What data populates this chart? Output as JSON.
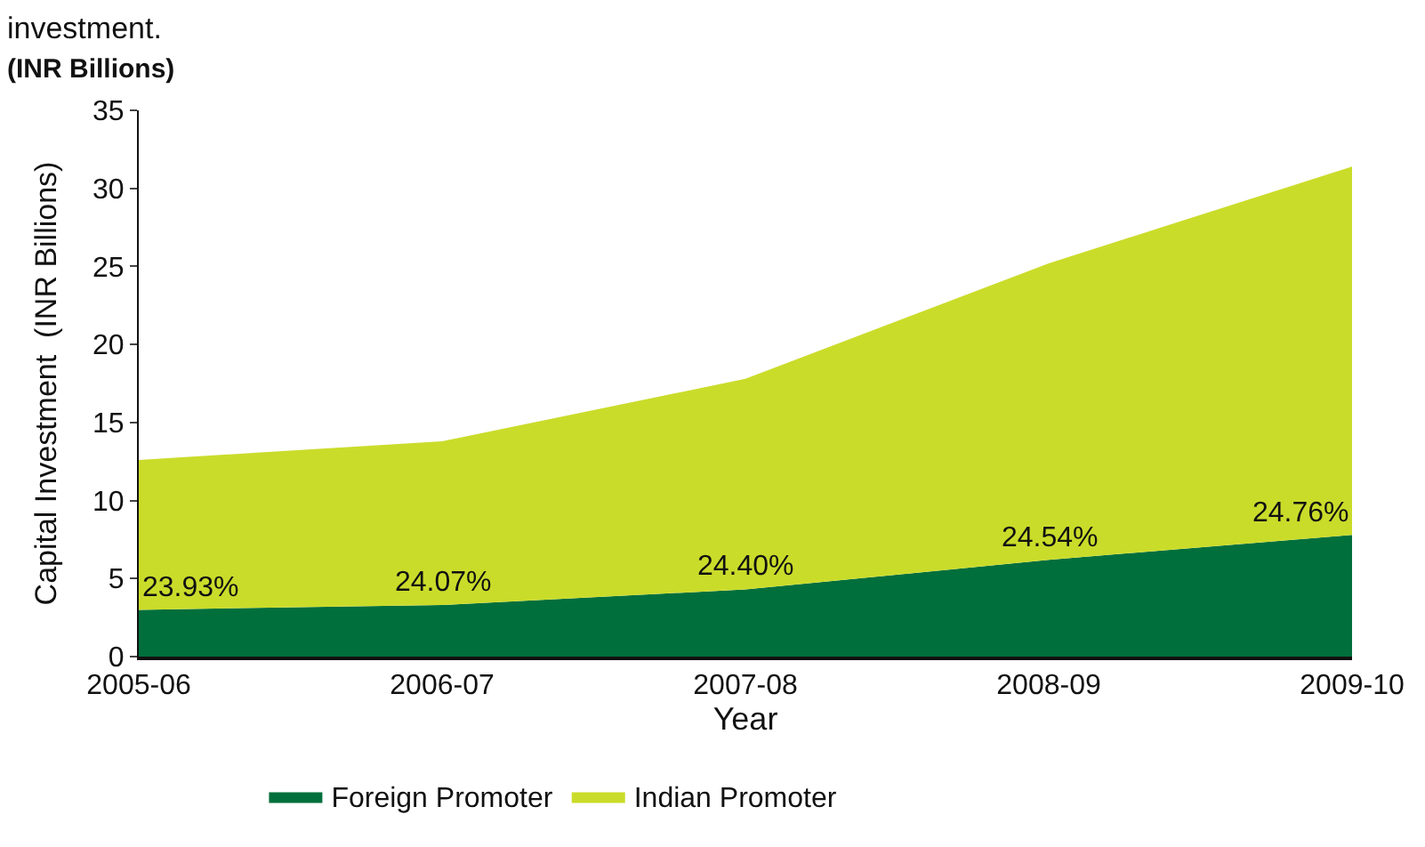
{
  "chart_data": {
    "type": "area",
    "stacked": true,
    "title": "investment.",
    "subtitle": "(INR Billions)",
    "xlabel": "Year",
    "ylabel": "Capital Investment  (INR Billions)",
    "categories": [
      "2005-06",
      "2006-07",
      "2007-08",
      "2008-09",
      "2009-10"
    ],
    "series": [
      {
        "name": "Foreign Promoter",
        "color": "#006f3c",
        "values": [
          3.0,
          3.3,
          4.3,
          6.2,
          7.8
        ]
      },
      {
        "name": "Indian Promoter",
        "color": "#cadc2a",
        "values": [
          9.6,
          10.5,
          13.5,
          19.0,
          23.6
        ]
      }
    ],
    "ylim": [
      0,
      35
    ],
    "yticks": [
      0,
      5,
      10,
      15,
      20,
      25,
      30,
      35
    ],
    "legend": "bottom",
    "annotations": [
      {
        "text": "23.93%",
        "x": "2005-06",
        "y": 3.0
      },
      {
        "text": "24.07%",
        "x": "2006-07",
        "y": 3.3
      },
      {
        "text": "24.40%",
        "x": "2007-08",
        "y": 4.3
      },
      {
        "text": "24.54%",
        "x": "2008-09",
        "y": 6.2
      },
      {
        "text": "24.76%",
        "x": "2009-10",
        "y": 7.8
      }
    ]
  }
}
